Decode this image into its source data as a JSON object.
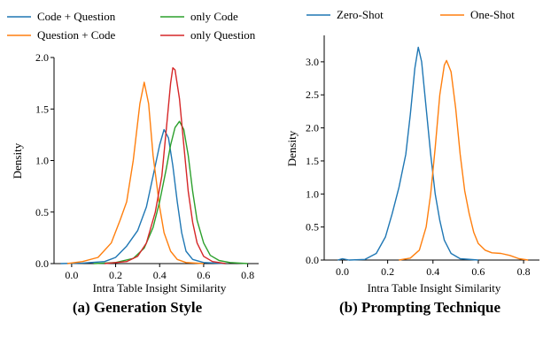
{
  "charts": [
    {
      "type": "line",
      "caption": "(a) Generation Style",
      "xlabel": "Intra Table Insight Similarity",
      "ylabel": "Density",
      "xlim": [
        -0.08,
        0.85
      ],
      "ylim": [
        0,
        2.0
      ],
      "xticks": [
        0.0,
        0.2,
        0.4,
        0.6,
        0.8
      ],
      "yticks": [
        0.0,
        0.5,
        1.0,
        1.5,
        2.0
      ],
      "grid": false,
      "legend_position": "top, two columns",
      "series": [
        {
          "name": "Code + Question",
          "color": "#1f77b4",
          "points": [
            [
              -0.05,
              0
            ],
            [
              0.05,
              0.005
            ],
            [
              0.15,
              0.02
            ],
            [
              0.2,
              0.06
            ],
            [
              0.25,
              0.17
            ],
            [
              0.3,
              0.32
            ],
            [
              0.34,
              0.55
            ],
            [
              0.37,
              0.85
            ],
            [
              0.4,
              1.15
            ],
            [
              0.42,
              1.3
            ],
            [
              0.44,
              1.22
            ],
            [
              0.46,
              0.95
            ],
            [
              0.48,
              0.6
            ],
            [
              0.5,
              0.3
            ],
            [
              0.52,
              0.12
            ],
            [
              0.55,
              0.04
            ],
            [
              0.6,
              0.01
            ],
            [
              0.7,
              0
            ]
          ]
        },
        {
          "name": "Question + Code",
          "color": "#ff7f0e",
          "points": [
            [
              -0.02,
              0
            ],
            [
              0.05,
              0.02
            ],
            [
              0.12,
              0.06
            ],
            [
              0.18,
              0.2
            ],
            [
              0.22,
              0.42
            ],
            [
              0.25,
              0.6
            ],
            [
              0.28,
              1.0
            ],
            [
              0.31,
              1.55
            ],
            [
              0.33,
              1.76
            ],
            [
              0.35,
              1.55
            ],
            [
              0.37,
              1.05
            ],
            [
              0.4,
              0.55
            ],
            [
              0.42,
              0.3
            ],
            [
              0.45,
              0.12
            ],
            [
              0.48,
              0.04
            ],
            [
              0.52,
              0.01
            ],
            [
              0.6,
              0
            ]
          ]
        },
        {
          "name": "only Code",
          "color": "#2ca02c",
          "points": [
            [
              0.1,
              0
            ],
            [
              0.2,
              0.01
            ],
            [
              0.28,
              0.05
            ],
            [
              0.33,
              0.15
            ],
            [
              0.37,
              0.35
            ],
            [
              0.4,
              0.6
            ],
            [
              0.43,
              0.92
            ],
            [
              0.45,
              1.15
            ],
            [
              0.47,
              1.32
            ],
            [
              0.49,
              1.38
            ],
            [
              0.51,
              1.3
            ],
            [
              0.53,
              1.05
            ],
            [
              0.55,
              0.7
            ],
            [
              0.57,
              0.42
            ],
            [
              0.6,
              0.2
            ],
            [
              0.63,
              0.08
            ],
            [
              0.67,
              0.03
            ],
            [
              0.72,
              0.01
            ],
            [
              0.8,
              0
            ]
          ]
        },
        {
          "name": "only Question",
          "color": "#d62728",
          "points": [
            [
              0.15,
              0
            ],
            [
              0.25,
              0.02
            ],
            [
              0.3,
              0.07
            ],
            [
              0.34,
              0.2
            ],
            [
              0.38,
              0.5
            ],
            [
              0.41,
              0.85
            ],
            [
              0.43,
              1.3
            ],
            [
              0.45,
              1.75
            ],
            [
              0.46,
              1.9
            ],
            [
              0.47,
              1.88
            ],
            [
              0.49,
              1.6
            ],
            [
              0.51,
              1.15
            ],
            [
              0.53,
              0.7
            ],
            [
              0.55,
              0.4
            ],
            [
              0.57,
              0.2
            ],
            [
              0.6,
              0.07
            ],
            [
              0.64,
              0.02
            ],
            [
              0.7,
              0
            ]
          ]
        }
      ]
    },
    {
      "type": "line",
      "caption": "(b) Prompting Technique",
      "xlabel": "Intra Table Insight Similarity",
      "ylabel": "Density",
      "xlim": [
        -0.08,
        0.87
      ],
      "ylim": [
        0,
        3.4
      ],
      "xticks": [
        0.0,
        0.2,
        0.4,
        0.6,
        0.8
      ],
      "yticks": [
        0.0,
        0.5,
        1.0,
        1.5,
        2.0,
        2.5,
        3.0
      ],
      "grid": false,
      "legend_position": "top, one row",
      "series": [
        {
          "name": "Zero-Shot",
          "color": "#1f77b4",
          "points": [
            [
              -0.02,
              0
            ],
            [
              0.0,
              0.02
            ],
            [
              0.03,
              0.0
            ],
            [
              0.1,
              0.01
            ],
            [
              0.15,
              0.1
            ],
            [
              0.19,
              0.35
            ],
            [
              0.22,
              0.7
            ],
            [
              0.25,
              1.1
            ],
            [
              0.28,
              1.6
            ],
            [
              0.3,
              2.2
            ],
            [
              0.32,
              2.9
            ],
            [
              0.335,
              3.22
            ],
            [
              0.35,
              3.0
            ],
            [
              0.37,
              2.3
            ],
            [
              0.39,
              1.6
            ],
            [
              0.41,
              1.0
            ],
            [
              0.43,
              0.6
            ],
            [
              0.45,
              0.3
            ],
            [
              0.48,
              0.1
            ],
            [
              0.52,
              0.02
            ],
            [
              0.6,
              0
            ]
          ]
        },
        {
          "name": "One-Shot",
          "color": "#ff7f0e",
          "points": [
            [
              0.25,
              0
            ],
            [
              0.3,
              0.03
            ],
            [
              0.34,
              0.15
            ],
            [
              0.37,
              0.5
            ],
            [
              0.39,
              1.0
            ],
            [
              0.41,
              1.7
            ],
            [
              0.43,
              2.5
            ],
            [
              0.45,
              2.95
            ],
            [
              0.46,
              3.02
            ],
            [
              0.48,
              2.85
            ],
            [
              0.5,
              2.3
            ],
            [
              0.52,
              1.6
            ],
            [
              0.54,
              1.05
            ],
            [
              0.56,
              0.7
            ],
            [
              0.58,
              0.42
            ],
            [
              0.6,
              0.25
            ],
            [
              0.63,
              0.15
            ],
            [
              0.66,
              0.11
            ],
            [
              0.7,
              0.1
            ],
            [
              0.74,
              0.07
            ],
            [
              0.78,
              0.02
            ],
            [
              0.82,
              0
            ]
          ]
        }
      ]
    }
  ]
}
